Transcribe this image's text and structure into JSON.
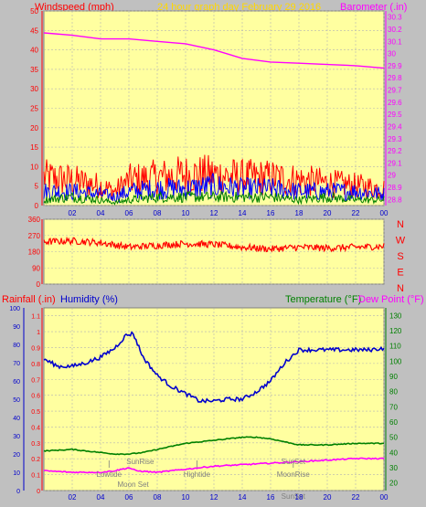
{
  "header": {
    "left_label": "Windspeed (mph)",
    "title": "24 hour graph day   February 29 2016",
    "right_label": "Barometer (.in)"
  },
  "colors": {
    "plot_bg": "#ffffa0",
    "window_bg": "#c0c0c0",
    "wind": "#ff0000",
    "wind_avg": "#0000ff",
    "wind_low": "#008000",
    "barometer": "#ff00ff",
    "humidity": "#0000cd",
    "temperature": "#008000",
    "dew_point": "#ff00ff",
    "rainfall": "#ff0000",
    "title": "#ffd700"
  },
  "chart_data": [
    {
      "type": "line",
      "name": "wind-barometer",
      "xlabel": "",
      "x_ticks": [
        "02",
        "04",
        "06",
        "08",
        "10",
        "12",
        "14",
        "16",
        "18",
        "20",
        "22",
        "00"
      ],
      "x_range": [
        0,
        24
      ],
      "left_axis": {
        "label": "Windspeed (mph)",
        "ylim": [
          0,
          50
        ],
        "ticks": [
          0,
          5,
          10,
          15,
          20,
          25,
          30,
          35,
          40,
          45,
          50
        ]
      },
      "right_axis": {
        "label": "Barometer (.in)",
        "ylim": [
          28.75,
          30.35
        ],
        "ticks": [
          "28.8",
          "28.9",
          "29",
          "29.1",
          "29.2",
          "29.3",
          "29.4",
          "29.5",
          "29.6",
          "29.7",
          "29.8",
          "29.9",
          "30",
          "30.1",
          "30.2",
          "30.3"
        ]
      },
      "barometer": {
        "x": [
          0,
          2,
          4,
          6,
          8,
          10,
          12,
          14,
          16,
          18,
          20,
          22,
          24
        ],
        "y": [
          30.17,
          30.15,
          30.12,
          30.12,
          30.1,
          30.08,
          30.03,
          29.96,
          29.93,
          29.92,
          29.91,
          29.9,
          29.88
        ]
      },
      "wind_gust_envelope": {
        "x": [
          0,
          2,
          4,
          5,
          6,
          8,
          10,
          12,
          14,
          16,
          18,
          20,
          22,
          24
        ],
        "y": [
          10,
          9,
          7,
          5,
          9,
          10,
          11,
          11,
          10,
          10,
          9,
          8,
          7,
          6
        ]
      },
      "wind_avg_envelope": {
        "x": [
          0,
          2,
          4,
          5,
          6,
          8,
          10,
          12,
          14,
          16,
          18,
          20,
          22,
          24
        ],
        "y": [
          5,
          5,
          4,
          3,
          5,
          6,
          6,
          7,
          6,
          6,
          5,
          5,
          5,
          4
        ]
      },
      "wind_low_envelope": {
        "x": [
          0,
          2,
          4,
          5,
          6,
          8,
          10,
          12,
          14,
          16,
          18,
          20,
          22,
          24
        ],
        "y": [
          2,
          3,
          2,
          1,
          2,
          3,
          3,
          3,
          3,
          3,
          2,
          3,
          2,
          2
        ]
      }
    },
    {
      "type": "line",
      "name": "wind-direction",
      "x_range": [
        0,
        24
      ],
      "left_axis": {
        "ylim": [
          0,
          360
        ],
        "ticks": [
          0,
          90,
          180,
          270,
          360
        ]
      },
      "right_axis": {
        "ticks": [
          "N",
          "E",
          "S",
          "W",
          "N"
        ]
      },
      "direction": {
        "x": [
          0,
          2,
          4,
          6,
          8,
          10,
          12,
          14,
          16,
          18,
          20,
          22,
          24
        ],
        "y": [
          235,
          240,
          230,
          205,
          215,
          225,
          220,
          205,
          195,
          205,
          200,
          205,
          210
        ]
      }
    },
    {
      "type": "line",
      "name": "temp-humidity",
      "header": {
        "rainfall": "Rainfall (.in)",
        "humidity": "Humidity (%)",
        "temperature": "Temperature (°F)",
        "dew_point": "Dew Point (°F)"
      },
      "x_ticks": [
        "02",
        "04",
        "06",
        "08",
        "10",
        "12",
        "14",
        "16",
        "18",
        "20",
        "22",
        "00"
      ],
      "x_range": [
        0,
        24
      ],
      "humidity_axis": {
        "ylim": [
          0,
          100
        ],
        "ticks": [
          0,
          10,
          20,
          30,
          40,
          50,
          60,
          70,
          80,
          90,
          100
        ]
      },
      "rain_axis": {
        "ylim": [
          0,
          1.15
        ],
        "ticks": [
          "0",
          "0.1",
          "0.2",
          "0.3",
          "0.4",
          "0.5",
          "0.6",
          "0.7",
          "0.8",
          "0.9",
          "1",
          "1.1"
        ]
      },
      "temp_axis": {
        "ylim": [
          15,
          135
        ],
        "ticks": [
          20,
          30,
          40,
          50,
          60,
          70,
          80,
          90,
          100,
          110,
          120,
          130
        ]
      },
      "humidity": {
        "x": [
          0,
          1,
          2,
          3,
          4,
          5,
          5.8,
          6.3,
          7,
          8,
          9,
          10,
          11,
          12,
          13,
          14,
          15,
          16,
          17,
          18,
          19,
          20,
          21,
          22,
          23,
          24
        ],
        "y": [
          72,
          68,
          68,
          70,
          73,
          78,
          85,
          86,
          73,
          63,
          57,
          53,
          49,
          49,
          50,
          50,
          54,
          60,
          70,
          77,
          77,
          77,
          77,
          77,
          77,
          78
        ]
      },
      "temperature": {
        "x": [
          0,
          2,
          4,
          5,
          6,
          7,
          8,
          10,
          12,
          14,
          15,
          16,
          17,
          18,
          20,
          22,
          24
        ],
        "y": [
          41,
          42,
          40,
          39,
          39,
          40,
          42,
          46,
          48,
          50,
          50,
          49,
          47,
          45,
          45,
          46,
          46
        ]
      },
      "dew_point": {
        "x": [
          0,
          2,
          4,
          5,
          6,
          6.5,
          8,
          10,
          12,
          14,
          16,
          18,
          20,
          22,
          24
        ],
        "y": [
          28,
          27,
          27,
          28,
          30,
          28,
          27,
          29,
          31,
          32,
          33,
          34,
          35,
          36,
          36
        ]
      },
      "events": [
        {
          "label": "SunRise",
          "x": 6.8,
          "row": "upper"
        },
        {
          "label": "Lowtide",
          "x": 4.6,
          "row": "middle"
        },
        {
          "label": "Moon Set",
          "x": 6.3,
          "row": "lower"
        },
        {
          "label": "Hightide",
          "x": 10.8,
          "row": "middle"
        },
        {
          "label": "SunSet",
          "x": 17.6,
          "row": "upper"
        },
        {
          "label": "MoonRise",
          "x": 17.6,
          "row": "middle"
        },
        {
          "label": "SunSet",
          "x": 17.6,
          "row": "bottom"
        }
      ]
    }
  ]
}
